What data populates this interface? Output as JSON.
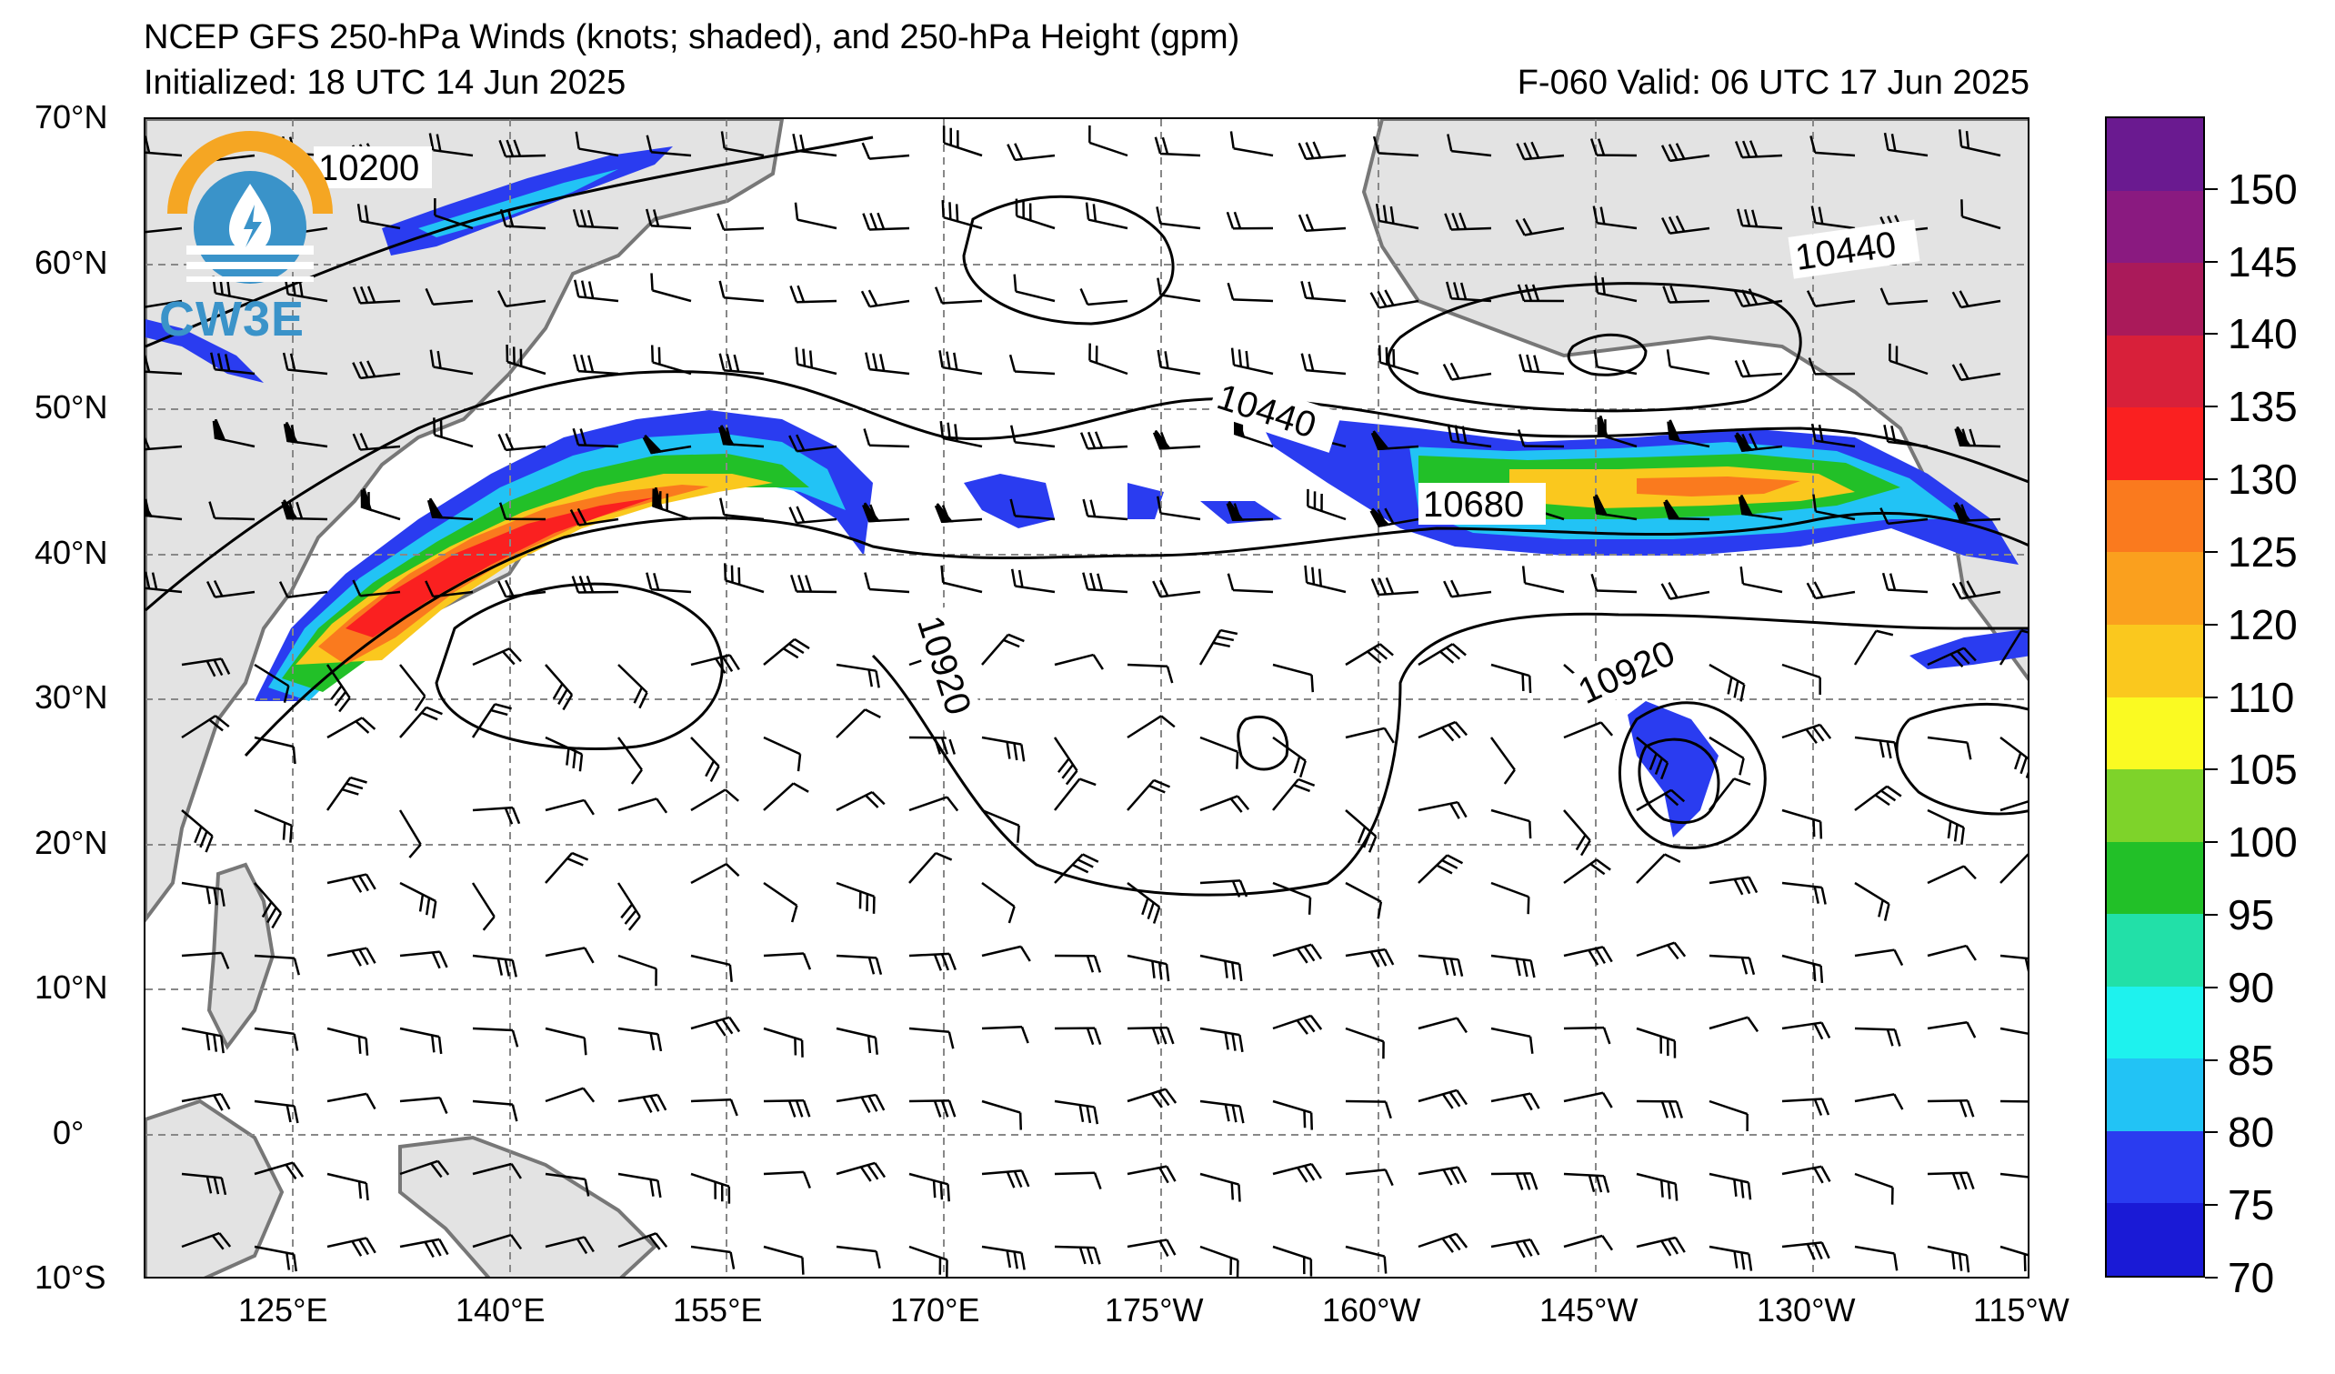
{
  "title": {
    "line1": "NCEP GFS 250-hPa Winds (knots; shaded), and 250-hPa Height (gpm)",
    "initialized": "Initialized: 18 UTC 14 Jun 2025",
    "valid": "F-060  Valid: 06 UTC 17 Jun 2025"
  },
  "logo": {
    "text": "CW3E",
    "icon": "water-drop-lightning-icon",
    "colors": {
      "arc": "#f5a623",
      "water": "#3a93c9"
    }
  },
  "map": {
    "lat_labels": [
      "70°N",
      "60°N",
      "50°N",
      "40°N",
      "30°N",
      "20°N",
      "10°N",
      "0°",
      "10°S"
    ],
    "lon_labels": [
      "125°E",
      "140°E",
      "155°E",
      "170°E",
      "175°W",
      "160°W",
      "145°W",
      "130°W",
      "115°W"
    ],
    "lat_range": [
      -10,
      70
    ],
    "lon_range_labels": [
      "110°E",
      "115°W"
    ],
    "gridlines": "dashed",
    "land_color": "#e0e0e0",
    "coast_color": "#777777"
  },
  "contour_labels": [
    "10200",
    "10440",
    "10440",
    "10680",
    "10920",
    "10920"
  ],
  "colorbar": {
    "levels": [
      70,
      75,
      80,
      85,
      90,
      95,
      100,
      105,
      110,
      120,
      125,
      130,
      135,
      140,
      145,
      150
    ],
    "label_values": [
      "70",
      "75",
      "80",
      "85",
      "90",
      "95",
      "100",
      "105",
      "110",
      "120",
      "125",
      "130",
      "135",
      "140",
      "145",
      "150"
    ],
    "colors": [
      "#1a1ad6",
      "#2a3cf0",
      "#22c3f5",
      "#1ef2ee",
      "#22e0a8",
      "#22c028",
      "#7ed32a",
      "#fafa22",
      "#fac81e",
      "#faa01e",
      "#fa7a1e",
      "#fa2020",
      "#d8203a",
      "#aa1a5a",
      "#8a1a80",
      "#6a1a90"
    ]
  }
}
